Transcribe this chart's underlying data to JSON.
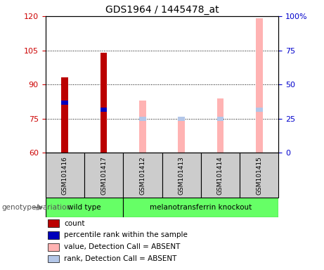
{
  "title": "GDS1964 / 1445478_at",
  "samples": [
    "GSM101416",
    "GSM101417",
    "GSM101412",
    "GSM101413",
    "GSM101414",
    "GSM101415"
  ],
  "ylim_left": [
    60,
    120
  ],
  "ylim_right": [
    0,
    100
  ],
  "yticks_left": [
    60,
    75,
    90,
    105,
    120
  ],
  "yticks_right": [
    0,
    25,
    50,
    75,
    100
  ],
  "count_values": [
    93,
    104,
    null,
    null,
    null,
    null
  ],
  "percentile_values": [
    82,
    79,
    null,
    null,
    null,
    null
  ],
  "absent_value_values": [
    null,
    null,
    83,
    74,
    84,
    119
  ],
  "absent_rank_values": [
    null,
    null,
    75,
    75,
    75,
    79
  ],
  "bar_width": 0.18,
  "count_color": "#bb0000",
  "percentile_color": "#0000bb",
  "absent_value_color": "#ffb3b3",
  "absent_rank_color": "#b3c6e8",
  "label_color_left": "#cc0000",
  "label_color_right": "#0000cc",
  "genotype_label": "genotype/variation",
  "wt_label": "wild type",
  "ko_label": "melanotransferrin knockout",
  "group_color": "#66ff66",
  "sample_box_color": "#cccccc",
  "legend_items": [
    {
      "label": "count",
      "color": "#bb0000"
    },
    {
      "label": "percentile rank within the sample",
      "color": "#0000bb"
    },
    {
      "label": "value, Detection Call = ABSENT",
      "color": "#ffb3b3"
    },
    {
      "label": "rank, Detection Call = ABSENT",
      "color": "#b3c6e8"
    }
  ]
}
